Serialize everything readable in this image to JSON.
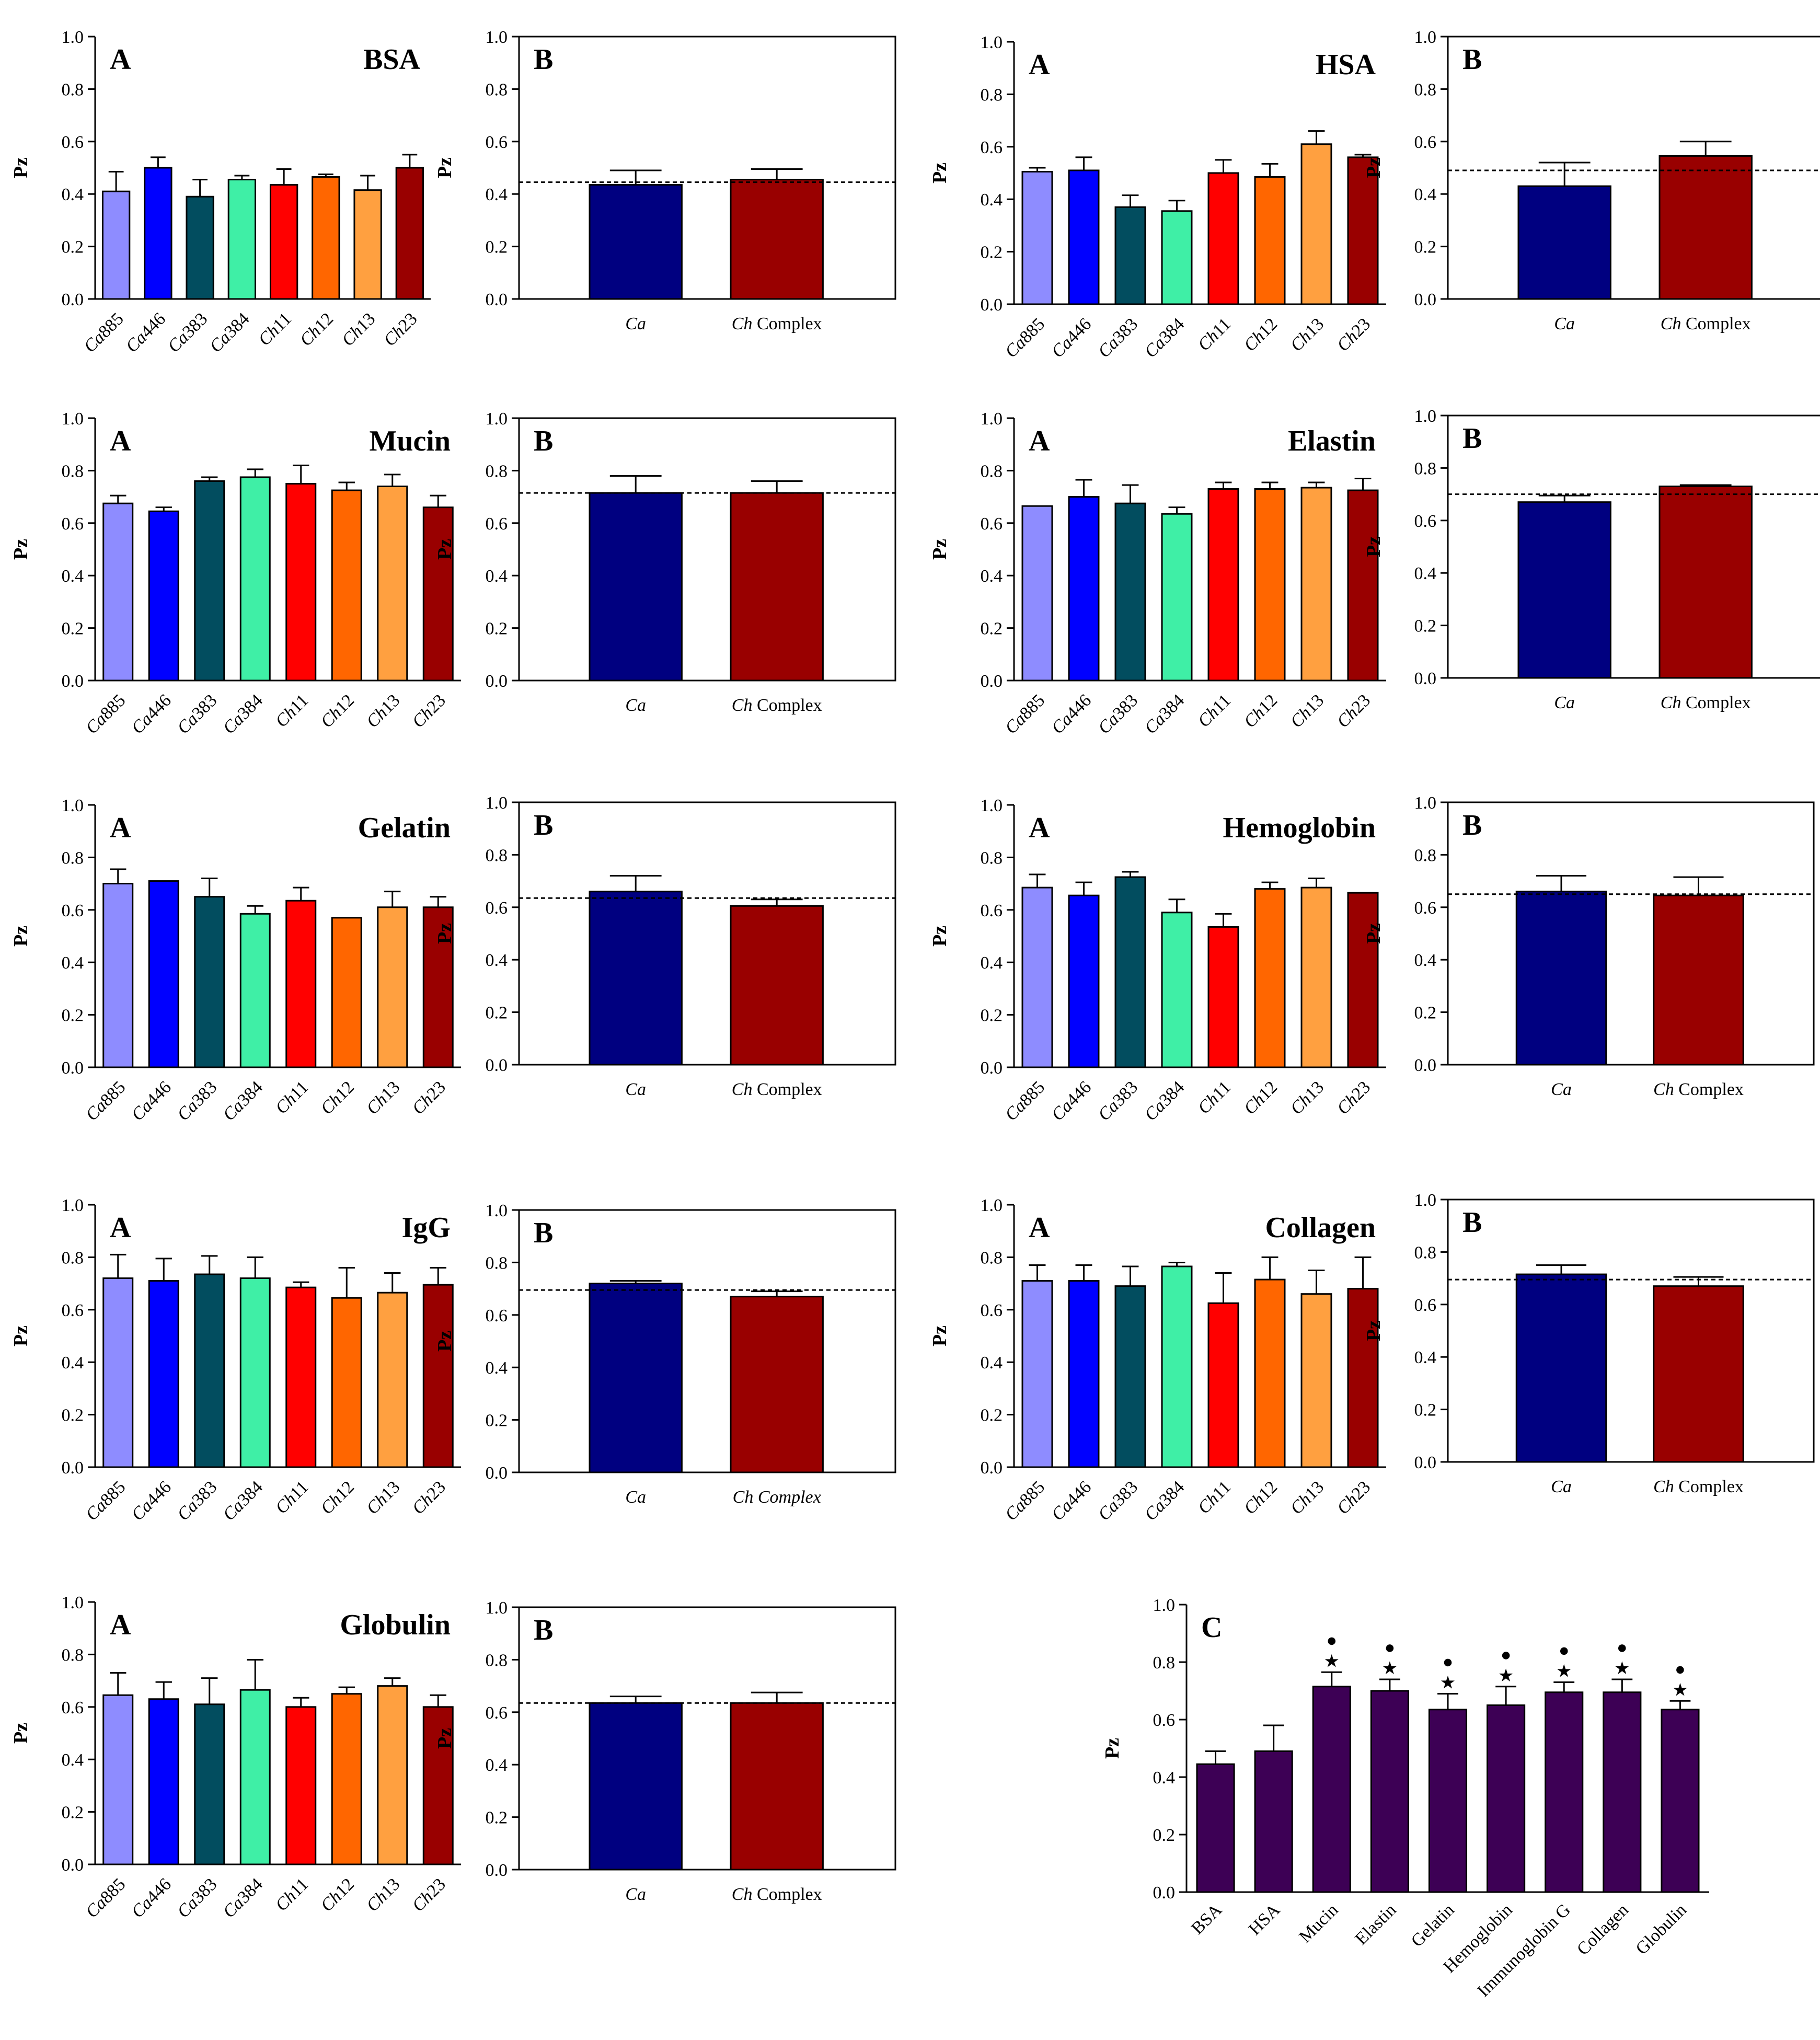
{
  "figure": {
    "ylabel": "Pz",
    "colors": {
      "strains": [
        "#8e8cff",
        "#0000ff",
        "#024d5f",
        "#3fefa6",
        "#ff0000",
        "#ff6600",
        "#ffa040",
        "#990000"
      ],
      "ca_group": "#000080",
      "ch_group": "#990000",
      "summary": "#3d0055"
    },
    "strains": [
      "Ca885",
      "Ca446",
      "Ca383",
      "Ca384",
      "Ch11",
      "Ch12",
      "Ch13",
      "Ch23"
    ],
    "strain_labels": [
      {
        "italic": "Ca",
        "rest": "885"
      },
      {
        "italic": "Ca",
        "rest": "446"
      },
      {
        "italic": "Ca",
        "rest": "383"
      },
      {
        "italic": "Ca",
        "rest": "384"
      },
      {
        "italic": "Ch",
        "rest": "11"
      },
      {
        "italic": "Ch",
        "rest": "12"
      },
      {
        "italic": "Ch",
        "rest": "13"
      },
      {
        "italic": "Ch",
        "rest": "23"
      }
    ],
    "group_labels": [
      {
        "italic": "Ca",
        "rest": ""
      },
      {
        "italic": "Ch",
        "rest": " Complex"
      }
    ],
    "group_labels_all_italic": [
      {
        "italic": "Ca",
        "rest": ""
      },
      {
        "italic": "Ch Complex",
        "rest": ""
      }
    ]
  },
  "chart_data": [
    {
      "type": "bar",
      "panel": "A",
      "title": "BSA",
      "ylabel": "Pz",
      "ylim": [
        0,
        1
      ],
      "yticks": [
        "0.0",
        "0.2",
        "0.4",
        "0.6",
        "0.8",
        "1.0"
      ],
      "categories": [
        "Ca885",
        "Ca446",
        "Ca383",
        "Ca384",
        "Ch11",
        "Ch12",
        "Ch13",
        "Ch23"
      ],
      "values": [
        0.41,
        0.5,
        0.39,
        0.455,
        0.435,
        0.465,
        0.415,
        0.5
      ],
      "errors": [
        0.075,
        0.04,
        0.065,
        0.015,
        0.06,
        0.01,
        0.055,
        0.05
      ]
    },
    {
      "type": "bar",
      "panel": "B",
      "title": "BSA",
      "ylabel": "Pz",
      "ylim": [
        0,
        1
      ],
      "yticks": [
        "0.0",
        "0.2",
        "0.4",
        "0.6",
        "0.8",
        "1.0"
      ],
      "categories": [
        "Ca",
        "Ch Complex"
      ],
      "values": [
        0.435,
        0.455
      ],
      "errors": [
        0.055,
        0.04
      ],
      "reference_line": 0.445
    },
    {
      "type": "bar",
      "panel": "A",
      "title": "HSA",
      "ylabel": "Pz",
      "ylim": [
        0,
        1
      ],
      "yticks": [
        "0.0",
        "0.2",
        "0.4",
        "0.6",
        "0.8",
        "1.0"
      ],
      "categories": [
        "Ca885",
        "Ca446",
        "Ca383",
        "Ca384",
        "Ch11",
        "Ch12",
        "Ch13",
        "Ch23"
      ],
      "values": [
        0.505,
        0.51,
        0.37,
        0.355,
        0.5,
        0.485,
        0.61,
        0.56
      ],
      "errors": [
        0.015,
        0.05,
        0.045,
        0.04,
        0.05,
        0.05,
        0.05,
        0.01
      ]
    },
    {
      "type": "bar",
      "panel": "B",
      "title": "HSA",
      "ylabel": "Pz",
      "ylim": [
        0,
        1
      ],
      "yticks": [
        "0.0",
        "0.2",
        "0.4",
        "0.6",
        "0.8",
        "1.0"
      ],
      "categories": [
        "Ca",
        "Ch Complex"
      ],
      "values": [
        0.43,
        0.545
      ],
      "errors": [
        0.09,
        0.055
      ],
      "reference_line": 0.49
    },
    {
      "type": "bar",
      "panel": "A",
      "title": "Mucin",
      "ylabel": "Pz",
      "ylim": [
        0,
        1
      ],
      "yticks": [
        "0.0",
        "0.2",
        "0.4",
        "0.6",
        "0.8",
        "1.0"
      ],
      "categories": [
        "Ca885",
        "Ca446",
        "Ca383",
        "Ca384",
        "Ch11",
        "Ch12",
        "Ch13",
        "Ch23"
      ],
      "values": [
        0.675,
        0.645,
        0.76,
        0.775,
        0.75,
        0.725,
        0.74,
        0.66
      ],
      "errors": [
        0.03,
        0.015,
        0.015,
        0.03,
        0.07,
        0.03,
        0.045,
        0.045
      ]
    },
    {
      "type": "bar",
      "panel": "B",
      "title": "Mucin",
      "ylabel": "Pz",
      "ylim": [
        0,
        1
      ],
      "yticks": [
        "0.0",
        "0.2",
        "0.4",
        "0.6",
        "0.8",
        "1.0"
      ],
      "categories": [
        "Ca",
        "Ch Complex"
      ],
      "values": [
        0.715,
        0.715
      ],
      "errors": [
        0.065,
        0.045
      ],
      "reference_line": 0.715
    },
    {
      "type": "bar",
      "panel": "A",
      "title": "Elastin",
      "ylabel": "Pz",
      "ylim": [
        0,
        1
      ],
      "yticks": [
        "0.0",
        "0.2",
        "0.4",
        "0.6",
        "0.8",
        "1.0"
      ],
      "categories": [
        "Ca885",
        "Ca446",
        "Ca383",
        "Ca384",
        "Ch11",
        "Ch12",
        "Ch13",
        "Ch23"
      ],
      "values": [
        0.665,
        0.7,
        0.675,
        0.635,
        0.73,
        0.73,
        0.735,
        0.725
      ],
      "errors": [
        0.0,
        0.065,
        0.07,
        0.025,
        0.025,
        0.025,
        0.02,
        0.045
      ]
    },
    {
      "type": "bar",
      "panel": "B",
      "title": "Elastin",
      "ylabel": "Pz",
      "ylim": [
        0,
        1
      ],
      "yticks": [
        "0.0",
        "0.2",
        "0.4",
        "0.6",
        "0.8",
        "1.0"
      ],
      "categories": [
        "Ca",
        "Ch Complex"
      ],
      "values": [
        0.67,
        0.73
      ],
      "errors": [
        0.025,
        0.005
      ],
      "reference_line": 0.7
    },
    {
      "type": "bar",
      "panel": "A",
      "title": "Gelatin",
      "ylabel": "Pz",
      "ylim": [
        0,
        1
      ],
      "yticks": [
        "0.0",
        "0.2",
        "0.4",
        "0.6",
        "0.8",
        "1.0"
      ],
      "categories": [
        "Ca885",
        "Ca446",
        "Ca383",
        "Ca384",
        "Ch11",
        "Ch12",
        "Ch13",
        "Ch23"
      ],
      "values": [
        0.7,
        0.71,
        0.65,
        0.585,
        0.635,
        0.57,
        0.61,
        0.61
      ],
      "errors": [
        0.055,
        0.0,
        0.07,
        0.03,
        0.05,
        0.0,
        0.06,
        0.04
      ]
    },
    {
      "type": "bar",
      "panel": "B",
      "title": "Gelatin",
      "ylabel": "Pz",
      "ylim": [
        0,
        1
      ],
      "yticks": [
        "0.0",
        "0.2",
        "0.4",
        "0.6",
        "0.8",
        "1.0"
      ],
      "categories": [
        "Ca",
        "Ch Complex"
      ],
      "values": [
        0.66,
        0.605
      ],
      "errors": [
        0.06,
        0.025
      ],
      "reference_line": 0.635
    },
    {
      "type": "bar",
      "panel": "A",
      "title": "Hemoglobin",
      "ylabel": "Pz",
      "ylim": [
        0,
        1
      ],
      "yticks": [
        "0.0",
        "0.2",
        "0.4",
        "0.6",
        "0.8",
        "1.0"
      ],
      "categories": [
        "Ca885",
        "Ca446",
        "Ca383",
        "Ca384",
        "Ch11",
        "Ch12",
        "Ch13",
        "Ch23"
      ],
      "values": [
        0.685,
        0.655,
        0.725,
        0.59,
        0.535,
        0.68,
        0.685,
        0.665
      ],
      "errors": [
        0.05,
        0.05,
        0.02,
        0.05,
        0.05,
        0.025,
        0.035,
        0.0
      ]
    },
    {
      "type": "bar",
      "panel": "B",
      "title": "Hemoglobin",
      "ylabel": "Pz",
      "ylim": [
        0,
        1
      ],
      "yticks": [
        "0.0",
        "0.2",
        "0.4",
        "0.6",
        "0.8",
        "1.0"
      ],
      "categories": [
        "Ca",
        "Ch Complex"
      ],
      "values": [
        0.66,
        0.645
      ],
      "errors": [
        0.06,
        0.07
      ],
      "reference_line": 0.65
    },
    {
      "type": "bar",
      "panel": "A",
      "title": "IgG",
      "ylabel": "Pz",
      "ylim": [
        0,
        1
      ],
      "yticks": [
        "0.0",
        "0.2",
        "0.4",
        "0.6",
        "0.8",
        "1.0"
      ],
      "categories": [
        "Ca885",
        "Ca446",
        "Ca383",
        "Ca384",
        "Ch11",
        "Ch12",
        "Ch13",
        "Ch23"
      ],
      "values": [
        0.72,
        0.71,
        0.735,
        0.72,
        0.685,
        0.645,
        0.665,
        0.695
      ],
      "errors": [
        0.09,
        0.085,
        0.07,
        0.08,
        0.02,
        0.115,
        0.075,
        0.065
      ]
    },
    {
      "type": "bar",
      "panel": "B",
      "title": "IgG",
      "ylabel": "Pz",
      "ylim": [
        0,
        1
      ],
      "yticks": [
        "0.0",
        "0.2",
        "0.4",
        "0.6",
        "0.8",
        "1.0"
      ],
      "categories": [
        "Ca",
        "Ch Complex"
      ],
      "values": [
        0.72,
        0.67
      ],
      "errors": [
        0.01,
        0.02
      ],
      "reference_line": 0.695
    },
    {
      "type": "bar",
      "panel": "A",
      "title": "Collagen",
      "ylabel": "Pz",
      "ylim": [
        0,
        1
      ],
      "yticks": [
        "0.0",
        "0.2",
        "0.4",
        "0.6",
        "0.8",
        "1.0"
      ],
      "categories": [
        "Ca885",
        "Ca446",
        "Ca383",
        "Ca384",
        "Ch11",
        "Ch12",
        "Ch13",
        "Ch23"
      ],
      "values": [
        0.71,
        0.71,
        0.69,
        0.765,
        0.625,
        0.715,
        0.66,
        0.68
      ],
      "errors": [
        0.06,
        0.06,
        0.075,
        0.015,
        0.115,
        0.085,
        0.09,
        0.12
      ]
    },
    {
      "type": "bar",
      "panel": "B",
      "title": "Collagen",
      "ylabel": "Pz",
      "ylim": [
        0,
        1
      ],
      "yticks": [
        "0.0",
        "0.2",
        "0.4",
        "0.6",
        "0.8",
        "1.0"
      ],
      "categories": [
        "Ca",
        "Ch Complex"
      ],
      "values": [
        0.715,
        0.67
      ],
      "errors": [
        0.035,
        0.035
      ],
      "reference_line": 0.695
    },
    {
      "type": "bar",
      "panel": "A",
      "title": "Globulin",
      "ylabel": "Pz",
      "ylim": [
        0,
        1
      ],
      "yticks": [
        "0.0",
        "0.2",
        "0.4",
        "0.6",
        "0.8",
        "1.0"
      ],
      "categories": [
        "Ca885",
        "Ca446",
        "Ca383",
        "Ca384",
        "Ch11",
        "Ch12",
        "Ch13",
        "Ch23"
      ],
      "values": [
        0.645,
        0.63,
        0.61,
        0.665,
        0.6,
        0.65,
        0.68,
        0.6
      ],
      "errors": [
        0.085,
        0.065,
        0.1,
        0.115,
        0.035,
        0.025,
        0.03,
        0.045
      ]
    },
    {
      "type": "bar",
      "panel": "B",
      "title": "Globulin",
      "ylabel": "Pz",
      "ylim": [
        0,
        1
      ],
      "yticks": [
        "0.0",
        "0.2",
        "0.4",
        "0.6",
        "0.8",
        "1.0"
      ],
      "categories": [
        "Ca",
        "Ch Complex"
      ],
      "values": [
        0.635,
        0.635
      ],
      "errors": [
        0.025,
        0.04
      ],
      "reference_line": 0.635
    },
    {
      "type": "bar",
      "panel": "C",
      "title": "",
      "ylabel": "Pz",
      "ylim": [
        0,
        1
      ],
      "yticks": [
        "0.0",
        "0.2",
        "0.4",
        "0.6",
        "0.8",
        "1.0"
      ],
      "categories": [
        "BSA",
        "HSA",
        "Mucin",
        "Elastin",
        "Gelatin",
        "Hemoglobin",
        "Immunoglobin G",
        "Collagen",
        "Globulin"
      ],
      "values": [
        0.445,
        0.49,
        0.715,
        0.7,
        0.635,
        0.65,
        0.695,
        0.695,
        0.635
      ],
      "errors": [
        0.045,
        0.09,
        0.05,
        0.04,
        0.055,
        0.065,
        0.035,
        0.045,
        0.03
      ],
      "significance_star": [
        false,
        false,
        true,
        true,
        true,
        true,
        true,
        true,
        true
      ],
      "significance_dot": [
        false,
        false,
        true,
        true,
        true,
        true,
        true,
        true,
        true
      ],
      "significance_symbols": {
        "star": "★",
        "dot": "●"
      }
    }
  ]
}
